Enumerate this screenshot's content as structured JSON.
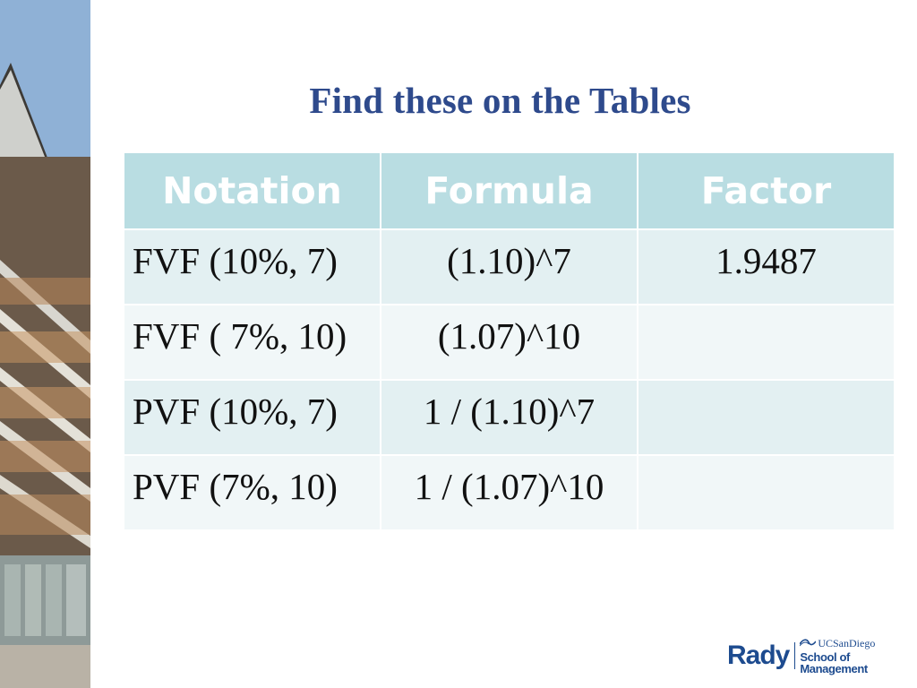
{
  "slide": {
    "title": "Find these on the Tables"
  },
  "table": {
    "headers": [
      "Notation",
      "Formula",
      "Factor"
    ],
    "rows": [
      {
        "notation": "FVF (10%, 7)",
        "formula": "(1.10)^7",
        "factor": "1.9487"
      },
      {
        "notation": "FVF ( 7%, 10)",
        "formula": "(1.07)^10",
        "factor": ""
      },
      {
        "notation": "PVF (10%, 7)",
        "formula": "1 / (1.10)^7",
        "factor": ""
      },
      {
        "notation": "PVF (7%, 10)",
        "formula": "1 / (1.07)^10",
        "factor": ""
      }
    ],
    "colors": {
      "header_bg": "#b9dde2",
      "row_odd_bg": "#e3f0f2",
      "row_even_bg": "#f1f7f8"
    }
  },
  "logo": {
    "brand": "Rady",
    "university": "UCSanDiego",
    "school": "School of Management",
    "color": "#1d4b8f"
  },
  "colors": {
    "title": "#2e4a8c"
  }
}
